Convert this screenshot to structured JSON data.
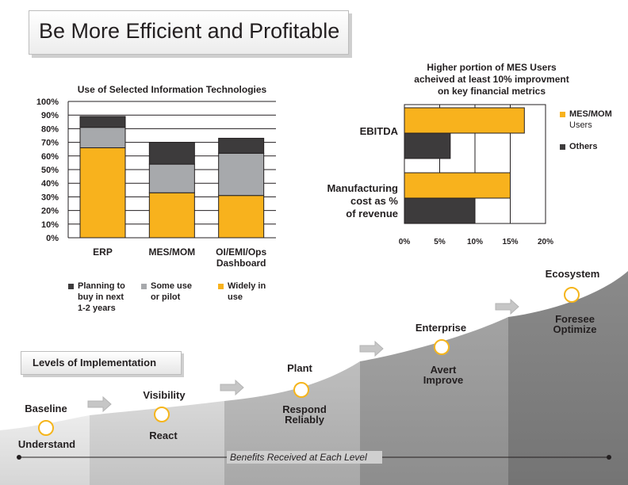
{
  "page": {
    "title": "Be More Efficient and Profitable",
    "levels_heading": "Levels of Implementation",
    "benefits_caption": "Benefits Received at Each Level"
  },
  "colors": {
    "widely": "#f8b21d",
    "some": "#a7a9ac",
    "planning": "#3d3b3c",
    "mes": "#f8b21d",
    "others": "#3d3b3c"
  },
  "chart_data": [
    {
      "type": "bar",
      "stacked": true,
      "title": "Use of Selected Information Technologies",
      "categories": [
        "ERP",
        "MES/MOM",
        "OI/EMI/Ops Dashboard"
      ],
      "series": [
        {
          "name": "Widely in use",
          "values": [
            66,
            33,
            31
          ]
        },
        {
          "name": "Some use or pilot",
          "values": [
            15,
            21,
            31
          ]
        },
        {
          "name": "Planning to buy in next 1-2 years",
          "values": [
            8,
            16,
            11
          ]
        }
      ],
      "ylim": [
        0,
        100
      ],
      "yticks": [
        "0%",
        "10%",
        "20%",
        "30%",
        "40%",
        "50%",
        "60%",
        "70%",
        "80%",
        "90%",
        "100%"
      ],
      "legend": [
        {
          "label_lines": [
            "Planning to",
            "buy in next",
            "1-2 years"
          ]
        },
        {
          "label_lines": [
            "Some use",
            "or pilot"
          ]
        },
        {
          "label_lines": [
            "Widely in",
            "use"
          ]
        }
      ]
    },
    {
      "type": "bar",
      "orientation": "horizontal",
      "title_lines": [
        "Higher portion of MES Users",
        "acheived at least 10% improvment",
        "on key financial metrics"
      ],
      "categories": [
        "EBITDA",
        "Manufacturing cost as % of revenue"
      ],
      "category_lines": [
        [
          "EBITDA"
        ],
        [
          "Manufacturing",
          "cost as %",
          "of revenue"
        ]
      ],
      "series": [
        {
          "name": "MES/MOM Users",
          "values": [
            17,
            15
          ]
        },
        {
          "name": "Others",
          "values": [
            6.5,
            10
          ]
        }
      ],
      "xlim": [
        0,
        20
      ],
      "xticks": [
        "0%",
        "5%",
        "10%",
        "15%",
        "20%"
      ],
      "legend": [
        {
          "label_lines": [
            "MES/MOM",
            "Users"
          ]
        },
        {
          "label_lines": [
            "Others"
          ]
        }
      ]
    }
  ],
  "stages": [
    {
      "name": "Baseline",
      "benefit": [
        "Understand"
      ]
    },
    {
      "name": "Visibility",
      "benefit": [
        "React"
      ]
    },
    {
      "name": "Plant",
      "benefit": [
        "Respond",
        "Reliably"
      ]
    },
    {
      "name": "Enterprise",
      "benefit": [
        "Avert",
        "Improve"
      ]
    },
    {
      "name": "Ecosystem",
      "benefit": [
        "Foresee",
        "Optimize"
      ]
    }
  ]
}
